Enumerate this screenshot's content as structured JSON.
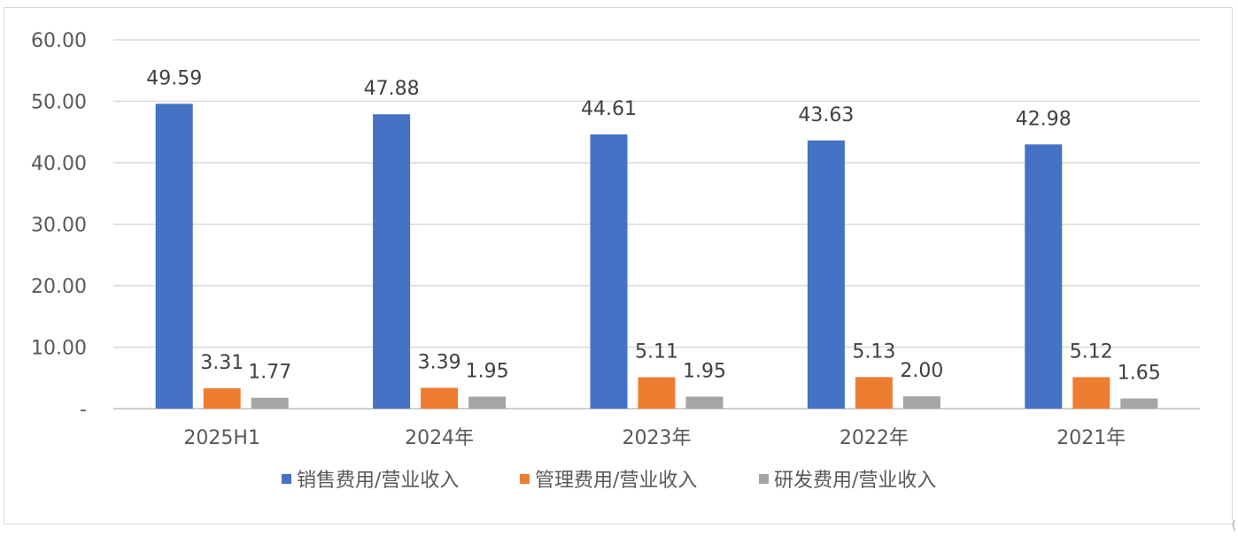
{
  "chart_data": {
    "type": "bar",
    "categories": [
      "2025H1",
      "2024年",
      "2023年",
      "2022年",
      "2021年"
    ],
    "series": [
      {
        "name": "销售费用/营业收入",
        "color": "#4472C4",
        "values": [
          49.59,
          47.88,
          44.61,
          43.63,
          42.98
        ],
        "labels": [
          "49.59",
          "47.88",
          "44.61",
          "43.63",
          "42.98"
        ]
      },
      {
        "name": "管理费用/营业收入",
        "color": "#ED7D31",
        "values": [
          3.31,
          3.39,
          5.11,
          5.13,
          5.12
        ],
        "labels": [
          "3.31",
          "3.39",
          "5.11",
          "5.13",
          "5.12"
        ]
      },
      {
        "name": "研发费用/营业收入",
        "color": "#A5A5A5",
        "values": [
          1.77,
          1.95,
          1.95,
          2.0,
          1.65
        ],
        "labels": [
          "1.77",
          "1.95",
          "1.95",
          "2.00",
          "1.65"
        ]
      }
    ],
    "ylim": [
      0,
      60
    ],
    "yticks": [
      0,
      10,
      20,
      30,
      40,
      50,
      60
    ],
    "ytick_labels": [
      "-",
      "10.00",
      "20.00",
      "30.00",
      "40.00",
      "50.00",
      "60.00"
    ],
    "grid": true,
    "legend_position": "bottom",
    "gridline_color": "#d9d9d9",
    "axis_color": "#bfbfbf"
  },
  "corner_mark": "⟨"
}
